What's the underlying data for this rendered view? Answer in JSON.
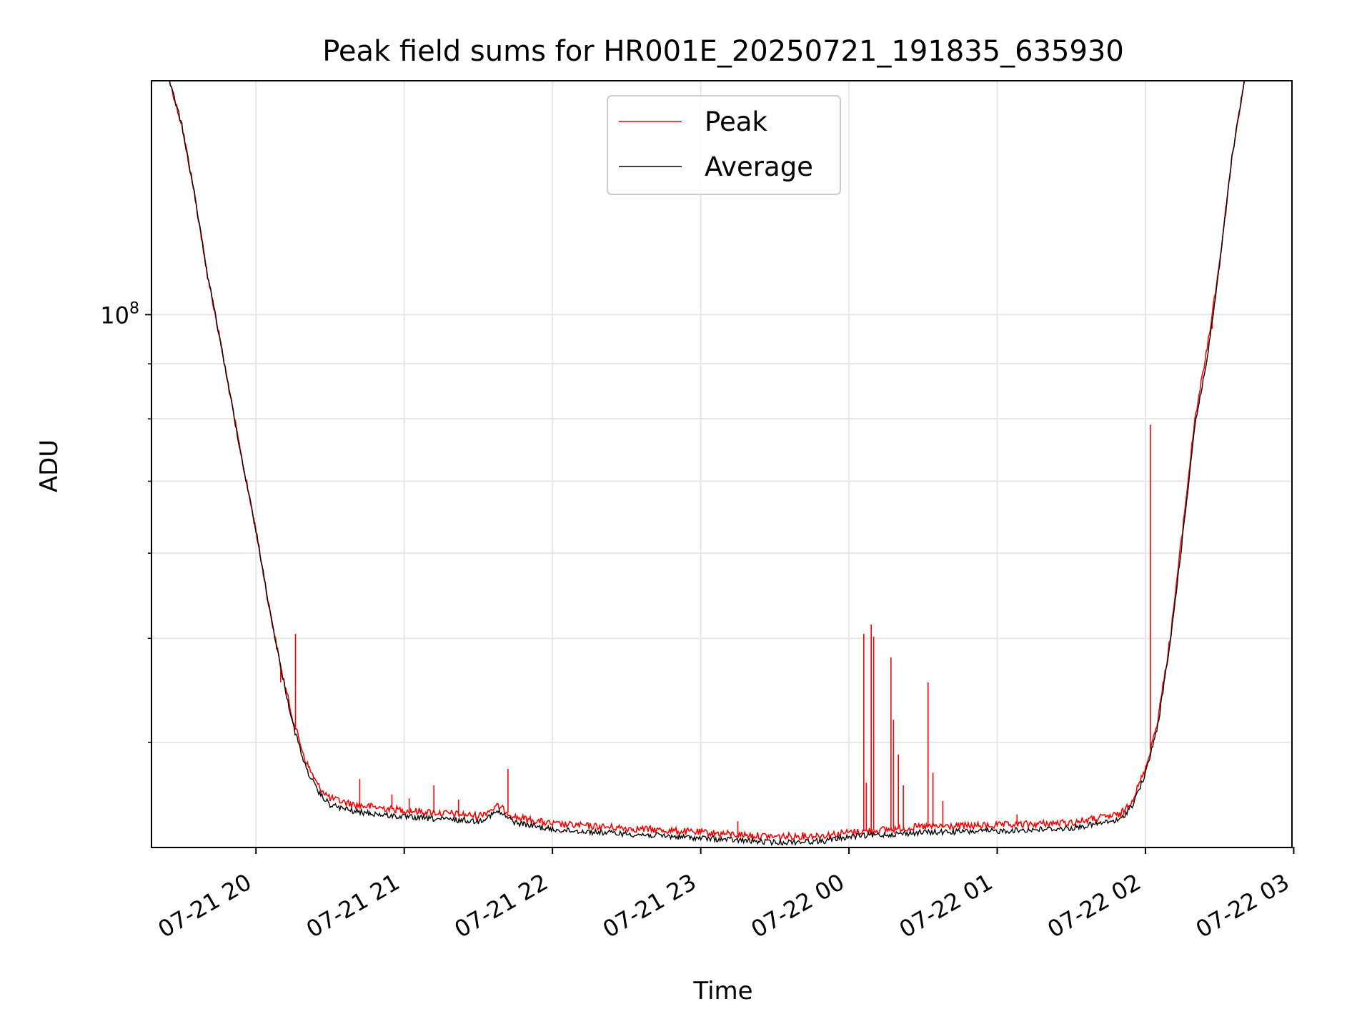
{
  "chart_data": {
    "type": "line",
    "title": "Peak field sums for HR001E_20250721_191835_635930",
    "xlabel": "Time",
    "ylabel": "ADU",
    "yscale": "log",
    "ylim": [
      32000000,
      165000000
    ],
    "xlim": [
      "2025-07-21 19:18",
      "2025-07-22 02:59"
    ],
    "grid": true,
    "legend_position": "upper center",
    "x_ticks": [
      "2025-07-21 20:00",
      "2025-07-21 21:00",
      "2025-07-21 22:00",
      "2025-07-21 23:00",
      "2025-07-22 00:00",
      "2025-07-22 01:00",
      "2025-07-22 02:00",
      "2025-07-22 03:00"
    ],
    "x_tick_labels": [
      "07-21 20",
      "07-21 21",
      "07-21 22",
      "07-21 23",
      "07-22 00",
      "07-22 01",
      "07-22 02",
      "07-22 03"
    ],
    "y_tick_label_base": "10",
    "y_tick_label_exp": "8",
    "colors": {
      "peak": "#ff0000",
      "average": "#000000",
      "grid": "#e6e6e6"
    },
    "series": [
      {
        "name": "Peak",
        "color": "#ff0000",
        "baseline": [
          [
            "2025-07-21 19:18",
            165000000
          ],
          [
            "2025-07-21 19:25",
            165000000
          ],
          [
            "2025-07-21 19:30",
            150000000
          ],
          [
            "2025-07-21 19:35",
            130000000
          ],
          [
            "2025-07-21 19:40",
            110000000
          ],
          [
            "2025-07-21 19:45",
            96000000
          ],
          [
            "2025-07-21 19:50",
            83000000
          ],
          [
            "2025-07-21 19:55",
            72000000
          ],
          [
            "2025-07-21 20:00",
            63000000
          ],
          [
            "2025-07-21 20:05",
            54000000
          ],
          [
            "2025-07-21 20:10",
            47000000
          ],
          [
            "2025-07-21 20:15",
            42000000
          ],
          [
            "2025-07-21 20:20",
            38500000
          ],
          [
            "2025-07-21 20:25",
            36500000
          ],
          [
            "2025-07-21 20:30",
            35500000
          ],
          [
            "2025-07-21 20:40",
            35000000
          ],
          [
            "2025-07-21 21:00",
            34600000
          ],
          [
            "2025-07-21 21:30",
            34200000
          ],
          [
            "2025-07-21 21:38",
            34900000
          ],
          [
            "2025-07-21 21:45",
            34100000
          ],
          [
            "2025-07-21 22:00",
            33600000
          ],
          [
            "2025-07-21 22:30",
            33300000
          ],
          [
            "2025-07-21 23:00",
            33000000
          ],
          [
            "2025-07-21 23:30",
            32700000
          ],
          [
            "2025-07-21 23:50",
            32800000
          ],
          [
            "2025-07-22 00:00",
            33000000
          ],
          [
            "2025-07-22 00:30",
            33400000
          ],
          [
            "2025-07-22 01:00",
            33500000
          ],
          [
            "2025-07-22 01:30",
            33700000
          ],
          [
            "2025-07-22 01:50",
            34300000
          ],
          [
            "2025-07-22 01:55",
            35500000
          ],
          [
            "2025-07-22 02:00",
            37800000
          ],
          [
            "2025-07-22 02:05",
            42000000
          ],
          [
            "2025-07-22 02:10",
            50000000
          ],
          [
            "2025-07-22 02:15",
            63000000
          ],
          [
            "2025-07-22 02:20",
            80000000
          ],
          [
            "2025-07-22 02:25",
            93000000
          ],
          [
            "2025-07-22 02:30",
            112000000
          ],
          [
            "2025-07-22 02:35",
            140000000
          ],
          [
            "2025-07-22 02:40",
            165000000
          ],
          [
            "2025-07-22 02:59",
            165000000
          ]
        ],
        "spikes": [
          [
            "2025-07-21 20:10",
            45500000
          ],
          [
            "2025-07-21 20:16",
            50500000
          ],
          [
            "2025-07-21 20:42",
            37000000
          ],
          [
            "2025-07-21 20:55",
            35800000
          ],
          [
            "2025-07-21 21:02",
            35500000
          ],
          [
            "2025-07-21 21:12",
            36500000
          ],
          [
            "2025-07-21 21:22",
            35400000
          ],
          [
            "2025-07-21 21:42",
            37800000
          ],
          [
            "2025-07-21 23:15",
            33800000
          ],
          [
            "2025-07-22 00:06",
            50500000
          ],
          [
            "2025-07-22 00:07",
            36700000
          ],
          [
            "2025-07-22 00:09",
            51500000
          ],
          [
            "2025-07-22 00:10",
            50200000
          ],
          [
            "2025-07-22 00:17",
            48000000
          ],
          [
            "2025-07-22 00:18",
            42000000
          ],
          [
            "2025-07-22 00:20",
            39000000
          ],
          [
            "2025-07-22 00:22",
            36500000
          ],
          [
            "2025-07-22 00:32",
            45500000
          ],
          [
            "2025-07-22 00:34",
            37500000
          ],
          [
            "2025-07-22 00:38",
            35300000
          ],
          [
            "2025-07-22 01:08",
            34300000
          ],
          [
            "2025-07-22 02:02",
            79000000
          ],
          [
            "2025-07-22 02:27",
            97000000
          ]
        ]
      },
      {
        "name": "Average",
        "color": "#000000",
        "baseline": [
          [
            "2025-07-21 19:18",
            165000000
          ],
          [
            "2025-07-21 19:25",
            165000000
          ],
          [
            "2025-07-21 19:30",
            150000000
          ],
          [
            "2025-07-21 19:35",
            130000000
          ],
          [
            "2025-07-21 19:40",
            110000000
          ],
          [
            "2025-07-21 19:45",
            96000000
          ],
          [
            "2025-07-21 19:50",
            83000000
          ],
          [
            "2025-07-21 19:55",
            72000000
          ],
          [
            "2025-07-21 20:00",
            63000000
          ],
          [
            "2025-07-21 20:05",
            54000000
          ],
          [
            "2025-07-21 20:10",
            47000000
          ],
          [
            "2025-07-21 20:15",
            41500000
          ],
          [
            "2025-07-21 20:20",
            38000000
          ],
          [
            "2025-07-21 20:25",
            36000000
          ],
          [
            "2025-07-21 20:30",
            35000000
          ],
          [
            "2025-07-21 20:40",
            34500000
          ],
          [
            "2025-07-21 21:00",
            34100000
          ],
          [
            "2025-07-21 21:30",
            33800000
          ],
          [
            "2025-07-21 21:38",
            34500000
          ],
          [
            "2025-07-21 21:45",
            33700000
          ],
          [
            "2025-07-21 22:00",
            33200000
          ],
          [
            "2025-07-21 22:30",
            32900000
          ],
          [
            "2025-07-21 23:00",
            32600000
          ],
          [
            "2025-07-21 23:30",
            32300000
          ],
          [
            "2025-07-21 23:50",
            32400000
          ],
          [
            "2025-07-22 00:00",
            32700000
          ],
          [
            "2025-07-22 00:30",
            33000000
          ],
          [
            "2025-07-22 01:00",
            33100000
          ],
          [
            "2025-07-22 01:30",
            33300000
          ],
          [
            "2025-07-22 01:50",
            33900000
          ],
          [
            "2025-07-22 01:55",
            35100000
          ],
          [
            "2025-07-22 02:00",
            37400000
          ],
          [
            "2025-07-22 02:05",
            41500000
          ],
          [
            "2025-07-22 02:10",
            49500000
          ],
          [
            "2025-07-22 02:15",
            62000000
          ],
          [
            "2025-07-22 02:20",
            79000000
          ],
          [
            "2025-07-22 02:25",
            91000000
          ],
          [
            "2025-07-22 02:30",
            111000000
          ],
          [
            "2025-07-22 02:35",
            140000000
          ],
          [
            "2025-07-22 02:40",
            165000000
          ],
          [
            "2025-07-22 02:59",
            165000000
          ]
        ]
      }
    ]
  }
}
